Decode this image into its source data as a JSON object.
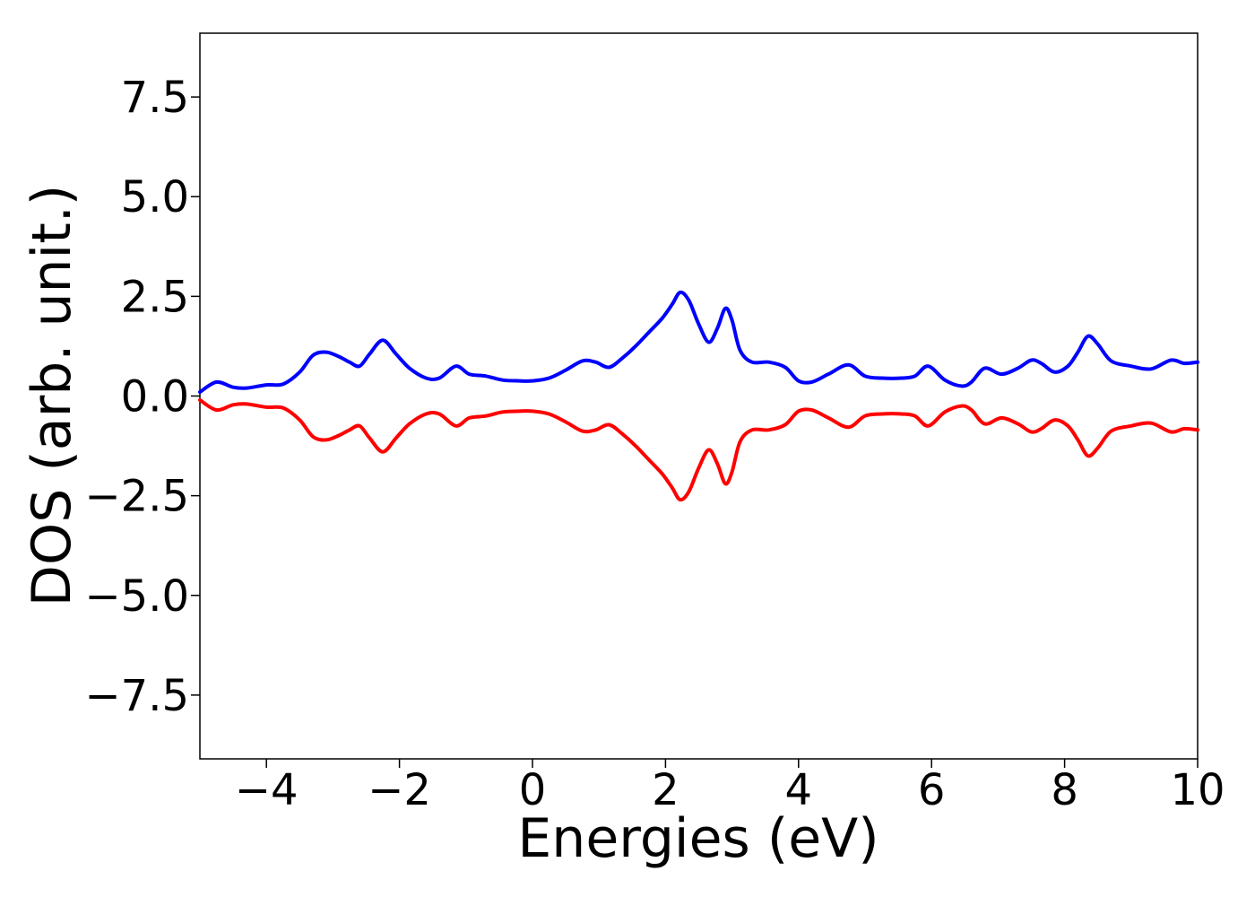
{
  "chart_data": {
    "type": "line",
    "title": "",
    "xlabel": "Energies (eV)",
    "ylabel": "DOS (arb. unit.)",
    "xlim": [
      -5,
      10
    ],
    "ylim": [
      -9.1,
      9.1
    ],
    "grid": false,
    "legend": "none",
    "x_ticks": [
      {
        "value": -4,
        "label": "−4"
      },
      {
        "value": -2,
        "label": "−2"
      },
      {
        "value": 0,
        "label": "0"
      },
      {
        "value": 2,
        "label": "2"
      },
      {
        "value": 4,
        "label": "4"
      },
      {
        "value": 6,
        "label": "6"
      },
      {
        "value": 8,
        "label": "8"
      },
      {
        "value": 10,
        "label": "10"
      }
    ],
    "y_ticks": [
      {
        "value": 7.5,
        "label": "7.5"
      },
      {
        "value": 5.0,
        "label": "5.0"
      },
      {
        "value": 2.5,
        "label": "2.5"
      },
      {
        "value": 0.0,
        "label": "0.0"
      },
      {
        "value": -2.5,
        "label": "−2.5"
      },
      {
        "value": -5.0,
        "label": "−5.0"
      },
      {
        "value": -7.5,
        "label": "−7.5"
      }
    ],
    "series": [
      {
        "color": "#0000ff",
        "x": [
          -5.0,
          -4.75,
          -4.5,
          -4.3,
          -4.0,
          -3.75,
          -3.5,
          -3.3,
          -3.1,
          -2.9,
          -2.75,
          -2.6,
          -2.45,
          -2.25,
          -2.05,
          -1.85,
          -1.6,
          -1.4,
          -1.15,
          -0.95,
          -0.7,
          -0.45,
          -0.2,
          0.0,
          0.25,
          0.5,
          0.75,
          0.95,
          1.15,
          1.35,
          1.55,
          1.75,
          1.95,
          2.1,
          2.22,
          2.35,
          2.5,
          2.65,
          2.78,
          2.9,
          3.0,
          3.12,
          3.3,
          3.55,
          3.8,
          4.0,
          4.2,
          4.45,
          4.75,
          5.0,
          5.25,
          5.55,
          5.75,
          5.95,
          6.2,
          6.45,
          6.6,
          6.8,
          7.05,
          7.3,
          7.5,
          7.65,
          7.85,
          8.05,
          8.2,
          8.35,
          8.5,
          8.7,
          9.0,
          9.3,
          9.6,
          9.8,
          10.0
        ],
        "y": [
          0.1,
          0.35,
          0.22,
          0.2,
          0.28,
          0.3,
          0.6,
          1.02,
          1.1,
          0.98,
          0.85,
          0.75,
          1.05,
          1.4,
          1.05,
          0.7,
          0.45,
          0.45,
          0.75,
          0.55,
          0.5,
          0.4,
          0.38,
          0.38,
          0.45,
          0.65,
          0.88,
          0.85,
          0.72,
          0.95,
          1.25,
          1.6,
          1.95,
          2.3,
          2.6,
          2.4,
          1.8,
          1.35,
          1.7,
          2.2,
          1.9,
          1.15,
          0.85,
          0.85,
          0.72,
          0.38,
          0.35,
          0.55,
          0.78,
          0.5,
          0.45,
          0.45,
          0.5,
          0.75,
          0.4,
          0.25,
          0.35,
          0.7,
          0.55,
          0.7,
          0.9,
          0.82,
          0.6,
          0.75,
          1.1,
          1.5,
          1.3,
          0.88,
          0.75,
          0.68,
          0.9,
          0.82,
          0.85
        ]
      },
      {
        "color": "#ff0000",
        "x": [
          -5.0,
          -4.75,
          -4.5,
          -4.3,
          -4.0,
          -3.75,
          -3.5,
          -3.3,
          -3.1,
          -2.9,
          -2.75,
          -2.6,
          -2.45,
          -2.25,
          -2.05,
          -1.85,
          -1.6,
          -1.4,
          -1.15,
          -0.95,
          -0.7,
          -0.45,
          -0.2,
          0.0,
          0.25,
          0.5,
          0.75,
          0.95,
          1.15,
          1.35,
          1.55,
          1.75,
          1.95,
          2.1,
          2.22,
          2.35,
          2.5,
          2.65,
          2.78,
          2.9,
          3.0,
          3.12,
          3.3,
          3.55,
          3.8,
          4.0,
          4.2,
          4.45,
          4.75,
          5.0,
          5.25,
          5.55,
          5.75,
          5.95,
          6.2,
          6.45,
          6.6,
          6.8,
          7.05,
          7.3,
          7.5,
          7.65,
          7.85,
          8.05,
          8.2,
          8.35,
          8.5,
          8.7,
          9.0,
          9.3,
          9.6,
          9.8,
          10.0
        ],
        "y": [
          -0.1,
          -0.35,
          -0.22,
          -0.2,
          -0.28,
          -0.3,
          -0.6,
          -1.02,
          -1.1,
          -0.98,
          -0.85,
          -0.75,
          -1.05,
          -1.4,
          -1.05,
          -0.7,
          -0.45,
          -0.45,
          -0.75,
          -0.55,
          -0.5,
          -0.4,
          -0.38,
          -0.38,
          -0.45,
          -0.65,
          -0.88,
          -0.85,
          -0.72,
          -0.95,
          -1.25,
          -1.6,
          -1.95,
          -2.3,
          -2.6,
          -2.4,
          -1.8,
          -1.35,
          -1.7,
          -2.2,
          -1.9,
          -1.15,
          -0.85,
          -0.85,
          -0.72,
          -0.38,
          -0.35,
          -0.55,
          -0.78,
          -0.5,
          -0.45,
          -0.45,
          -0.5,
          -0.75,
          -0.4,
          -0.25,
          -0.35,
          -0.7,
          -0.55,
          -0.7,
          -0.9,
          -0.82,
          -0.6,
          -0.75,
          -1.1,
          -1.5,
          -1.3,
          -0.88,
          -0.75,
          -0.68,
          -0.9,
          -0.82,
          -0.85
        ]
      }
    ]
  }
}
